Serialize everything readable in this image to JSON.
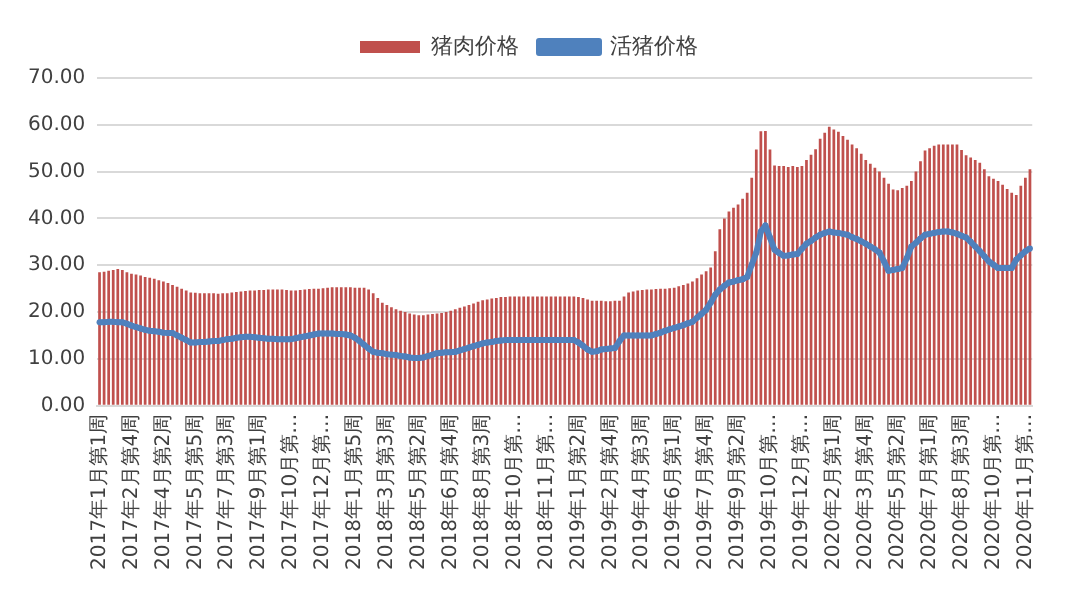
{
  "chart_data": {
    "type": "bar",
    "categories": [
      "2017年1月第1周",
      null,
      null,
      null,
      null,
      null,
      null,
      "2017年2月第4周",
      null,
      null,
      null,
      null,
      null,
      null,
      "2017年4月第2周",
      null,
      null,
      null,
      null,
      null,
      null,
      "2017年5月第5周",
      null,
      null,
      null,
      null,
      null,
      null,
      "2017年7月第3周",
      null,
      null,
      null,
      null,
      null,
      null,
      "2017年9月第1周",
      null,
      null,
      null,
      null,
      null,
      null,
      "2017年10月第…",
      null,
      null,
      null,
      null,
      null,
      null,
      "2017年12月第…",
      null,
      null,
      null,
      null,
      null,
      null,
      "2018年1月第5周",
      null,
      null,
      null,
      null,
      null,
      null,
      "2018年3月第3周",
      null,
      null,
      null,
      null,
      null,
      null,
      "2018年5月第2周",
      null,
      null,
      null,
      null,
      null,
      null,
      "2018年6月第4周",
      null,
      null,
      null,
      null,
      null,
      null,
      "2018年8月第3周",
      null,
      null,
      null,
      null,
      null,
      null,
      "2018年10月第…",
      null,
      null,
      null,
      null,
      null,
      null,
      "2018年11月第…",
      null,
      null,
      null,
      null,
      null,
      null,
      "2019年1月第2周",
      null,
      null,
      null,
      null,
      null,
      null,
      "2019年2月第4周",
      null,
      null,
      null,
      null,
      null,
      null,
      "2019年4月第3周",
      null,
      null,
      null,
      null,
      null,
      null,
      "2019年6月第1周",
      null,
      null,
      null,
      null,
      null,
      null,
      "2019年7月第4周",
      null,
      null,
      null,
      null,
      null,
      null,
      "2019年9月第2周",
      null,
      null,
      null,
      null,
      null,
      null,
      "2019年10月第…",
      null,
      null,
      null,
      null,
      null,
      null,
      "2019年12月第…",
      null,
      null,
      null,
      null,
      null,
      null,
      "2020年2月第1周",
      null,
      null,
      null,
      null,
      null,
      null,
      "2020年3月第4周",
      null,
      null,
      null,
      null,
      null,
      null,
      "2020年5月第2周",
      null,
      null,
      null,
      null,
      null,
      null,
      "2020年7月第1周",
      null,
      null,
      null,
      null,
      null,
      null,
      "2020年8月第3周",
      null,
      null,
      null,
      null,
      null,
      null,
      "2020年10月第…",
      null,
      null,
      null,
      null,
      null,
      null,
      "2020年11月第…",
      null
    ],
    "series": [
      {
        "name": "猪肉价格",
        "color": "#c0504d",
        "values": [
          28.5,
          28.6,
          28.8,
          29.0,
          29.2,
          29.0,
          28.5,
          28.2,
          28.0,
          27.8,
          27.5,
          27.3,
          27.1,
          26.8,
          26.5,
          26.2,
          25.8,
          25.4,
          25.0,
          24.6,
          24.2,
          24.1,
          24.0,
          24.0,
          24.0,
          24.0,
          23.9,
          24.0,
          24.0,
          24.2,
          24.3,
          24.4,
          24.5,
          24.6,
          24.6,
          24.7,
          24.7,
          24.8,
          24.8,
          24.8,
          24.8,
          24.7,
          24.6,
          24.6,
          24.7,
          24.8,
          24.9,
          25.0,
          25.0,
          25.1,
          25.2,
          25.3,
          25.3,
          25.3,
          25.3,
          25.3,
          25.2,
          25.2,
          25.2,
          24.8,
          24.0,
          23.0,
          22.0,
          21.5,
          21.0,
          20.6,
          20.3,
          20.0,
          19.7,
          19.5,
          19.3,
          19.3,
          19.5,
          19.6,
          19.7,
          19.8,
          20.0,
          20.3,
          20.6,
          20.9,
          21.2,
          21.5,
          21.8,
          22.2,
          22.5,
          22.7,
          22.9,
          23.0,
          23.2,
          23.2,
          23.3,
          23.3,
          23.3,
          23.3,
          23.3,
          23.3,
          23.3,
          23.3,
          23.3,
          23.3,
          23.3,
          23.3,
          23.3,
          23.3,
          23.3,
          23.2,
          23.0,
          22.7,
          22.4,
          22.4,
          22.4,
          22.3,
          22.3,
          22.4,
          22.4,
          23.3,
          24.2,
          24.4,
          24.6,
          24.7,
          24.8,
          24.8,
          24.9,
          25.0,
          25.0,
          25.1,
          25.2,
          25.5,
          25.8,
          26.1,
          26.5,
          27.2,
          28.0,
          28.7,
          29.5,
          33.0,
          37.7,
          40.0,
          41.5,
          42.3,
          43.0,
          44.2,
          45.5,
          48.7,
          54.7,
          58.6,
          58.7,
          54.7,
          51.3,
          51.2,
          51.2,
          51.0,
          51.2,
          51.0,
          51.2,
          52.5,
          53.6,
          54.8,
          57.0,
          58.3,
          59.6,
          59.0,
          58.5,
          57.6,
          56.8,
          55.8,
          55.0,
          53.8,
          52.5,
          51.7,
          50.8,
          50.0,
          48.7,
          47.4,
          46.2,
          46.0,
          46.5,
          47.0,
          48.0,
          50.0,
          52.2,
          54.5,
          55.0,
          55.5,
          55.8,
          55.8,
          55.8,
          55.8,
          55.8,
          54.6,
          53.5,
          53.0,
          52.5,
          51.9,
          50.5,
          49.0,
          48.5,
          48.0,
          47.2,
          46.3,
          45.5,
          45.0,
          47.0,
          48.7,
          50.5
        ]
      },
      {
        "name": "活猪价格",
        "type": "line",
        "color": "#4f81bd",
        "marker": "circle",
        "values": [
          17.8,
          17.8,
          17.9,
          17.9,
          17.8,
          17.8,
          17.5,
          17.1,
          16.8,
          16.5,
          16.2,
          16.0,
          15.9,
          15.8,
          15.6,
          15.5,
          15.5,
          15.0,
          14.5,
          14.0,
          13.5,
          13.5,
          13.6,
          13.6,
          13.7,
          13.8,
          13.8,
          14.0,
          14.2,
          14.3,
          14.5,
          14.6,
          14.7,
          14.7,
          14.6,
          14.5,
          14.4,
          14.3,
          14.3,
          14.2,
          14.2,
          14.2,
          14.2,
          14.4,
          14.6,
          14.8,
          15.0,
          15.2,
          15.4,
          15.4,
          15.4,
          15.4,
          15.3,
          15.3,
          15.2,
          15.0,
          14.5,
          13.8,
          13.0,
          12.2,
          11.5,
          11.3,
          11.2,
          11.0,
          10.9,
          10.8,
          10.6,
          10.5,
          10.3,
          10.2,
          10.2,
          10.3,
          10.6,
          10.9,
          11.2,
          11.3,
          11.4,
          11.4,
          11.5,
          11.8,
          12.1,
          12.4,
          12.7,
          13.0,
          13.3,
          13.5,
          13.6,
          13.8,
          13.9,
          14.0,
          14.0,
          14.0,
          14.0,
          14.0,
          14.0,
          14.0,
          14.0,
          14.0,
          14.0,
          14.0,
          14.0,
          14.0,
          14.0,
          14.0,
          14.0,
          13.5,
          12.8,
          12.0,
          11.5,
          11.6,
          12.0,
          12.1,
          12.2,
          12.3,
          13.8,
          15.0,
          15.0,
          15.0,
          15.0,
          15.0,
          15.0,
          15.0,
          15.3,
          15.6,
          16.0,
          16.3,
          16.6,
          16.9,
          17.2,
          17.6,
          17.9,
          18.8,
          19.6,
          20.5,
          22.0,
          23.7,
          24.8,
          25.6,
          26.3,
          26.5,
          26.8,
          27.0,
          27.5,
          30.1,
          32.7,
          37.2,
          38.5,
          35.9,
          33.3,
          32.6,
          32.0,
          32.1,
          32.3,
          32.4,
          33.5,
          34.6,
          35.2,
          35.9,
          36.5,
          36.9,
          37.2,
          37.0,
          36.9,
          36.7,
          36.5,
          36.0,
          35.6,
          35.1,
          34.6,
          34.0,
          33.4,
          32.7,
          30.8,
          28.8,
          29.0,
          29.2,
          29.4,
          31.5,
          34.0,
          34.8,
          35.7,
          36.5,
          36.7,
          36.9,
          37.1,
          37.2,
          37.2,
          37.0,
          36.7,
          36.3,
          35.9,
          35.0,
          34.0,
          33.0,
          31.9,
          30.8,
          30.1,
          29.4,
          29.4,
          29.4,
          29.4,
          31.2,
          32.1,
          33.0,
          33.6
        ]
      }
    ],
    "ylim": [
      0,
      70
    ],
    "yticks": [
      {
        "value": 0,
        "label": "0.00"
      },
      {
        "value": 10,
        "label": "10.00"
      },
      {
        "value": 20,
        "label": "20.00"
      },
      {
        "value": 30,
        "label": "30.00"
      },
      {
        "value": 40,
        "label": "40.00"
      },
      {
        "value": 50,
        "label": "50.00"
      },
      {
        "value": 60,
        "label": "60.00"
      },
      {
        "value": 70,
        "label": "70.00"
      }
    ],
    "grid": "y",
    "legend": "top"
  }
}
